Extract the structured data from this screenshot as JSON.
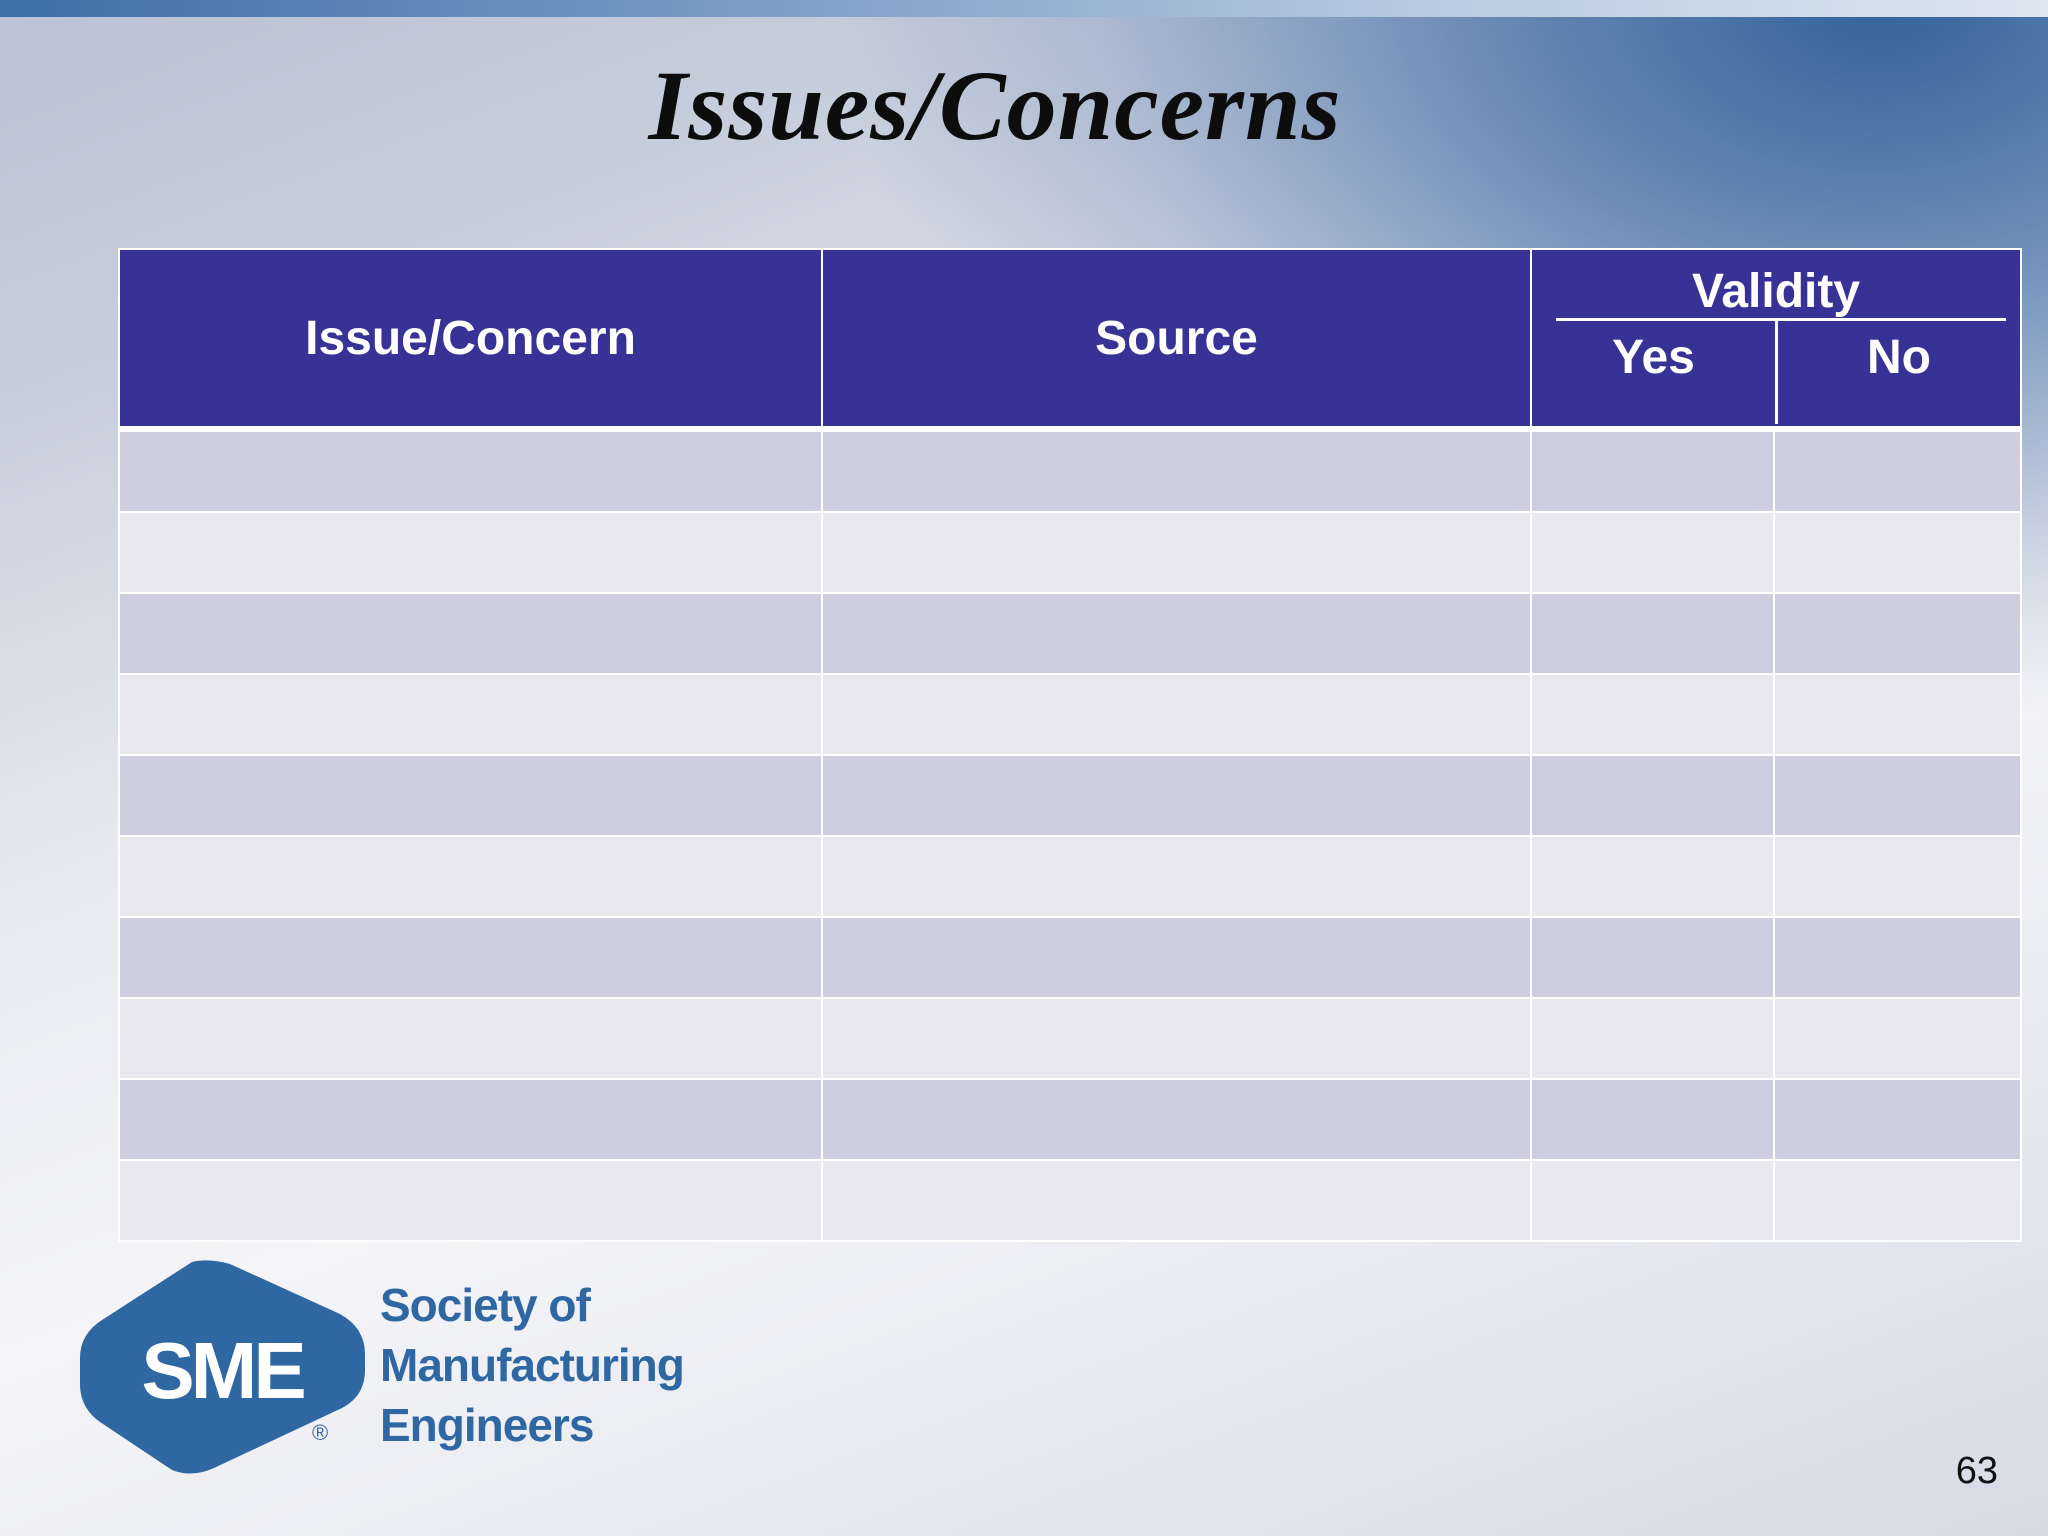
{
  "slide": {
    "title": "Issues/Concerns",
    "page_number": "63"
  },
  "table": {
    "headers": {
      "issue": "Issue/Concern",
      "source": "Source",
      "validity": "Validity",
      "yes": "Yes",
      "no": "No"
    },
    "rows": [
      [
        "",
        "",
        "",
        ""
      ],
      [
        "",
        "",
        "",
        ""
      ],
      [
        "",
        "",
        "",
        ""
      ],
      [
        "",
        "",
        "",
        ""
      ],
      [
        "",
        "",
        "",
        ""
      ],
      [
        "",
        "",
        "",
        ""
      ],
      [
        "",
        "",
        "",
        ""
      ],
      [
        "",
        "",
        "",
        ""
      ],
      [
        "",
        "",
        "",
        ""
      ],
      [
        "",
        "",
        "",
        ""
      ]
    ]
  },
  "logo": {
    "mark": "SME",
    "line1": "Society of",
    "line2": "Manufacturing",
    "line3": "Engineers",
    "registered": "®",
    "brand_color": "#2f67a3"
  },
  "colors": {
    "header_bg": "#363296",
    "row_odd": "#cfcde0",
    "row_even": "#eae8ef"
  }
}
